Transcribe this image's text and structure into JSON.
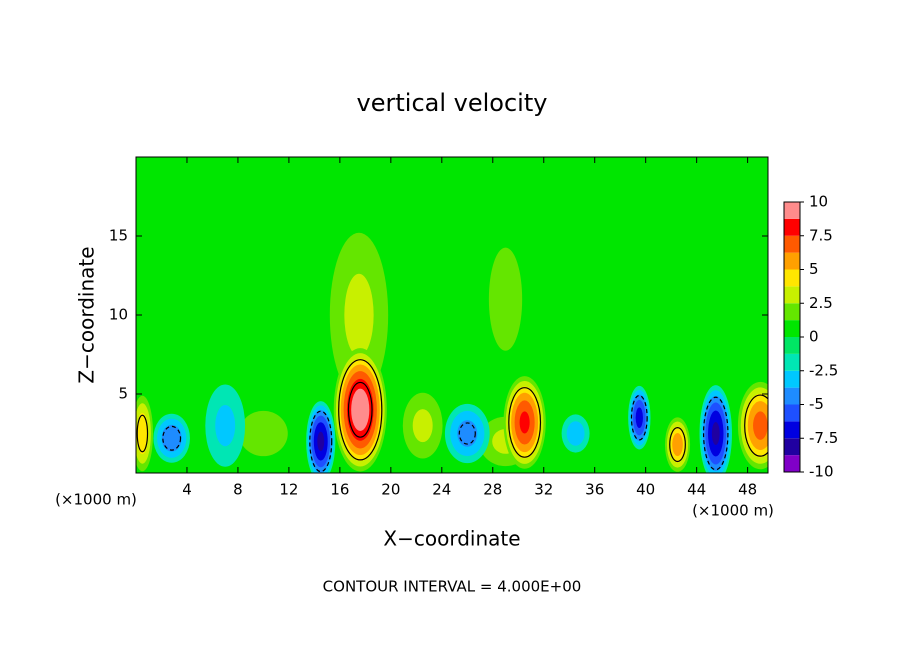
{
  "chart_data": {
    "type": "contour",
    "title": "vertical velocity",
    "x_label": "X−coordinate",
    "y_label": "Z−coordinate",
    "x_unit": "(×1000 m)",
    "annotation": "CONTOUR INTERVAL = 4.000E+00",
    "contour_interval": 4,
    "xlim": [
      0,
      49.6
    ],
    "ylim": [
      0,
      20
    ],
    "xticks": [
      4,
      8,
      12,
      16,
      20,
      24,
      28,
      32,
      36,
      40,
      44,
      48
    ],
    "yticks": [
      5,
      10,
      15
    ],
    "clim": [
      -10,
      10
    ],
    "cticks": [
      -10,
      -7.5,
      -5,
      -2.5,
      0,
      2.5,
      5,
      7.5,
      10
    ],
    "colors": [
      "#8000c8",
      "#2000a0",
      "#0000e0",
      "#1e50ff",
      "#1e8cff",
      "#00c8ff",
      "#00e6b4",
      "#00e664",
      "#00e600",
      "#64e600",
      "#c8f000",
      "#ffe600",
      "#ffa000",
      "#ff5a00",
      "#ff0000",
      "#ff8c8c"
    ],
    "features": [
      {
        "x": 17.5,
        "z": 10,
        "rx": 2.2,
        "rz": 5,
        "value": 3
      },
      {
        "x": 29,
        "z": 11,
        "rx": 1.6,
        "rz": 4,
        "value": 2
      },
      {
        "x": 10,
        "z": 2.5,
        "rx": 2,
        "rz": 1.5,
        "value": 2.5
      },
      {
        "x": 22.5,
        "z": 3,
        "rx": 1.5,
        "rz": 2,
        "value": 3
      },
      {
        "x": 29,
        "z": 2,
        "rx": 2,
        "rz": 1.5,
        "value": 3
      },
      {
        "x": 7,
        "z": 3,
        "rx": 1.5,
        "rz": 2.5,
        "value": -3
      },
      {
        "x": 17.6,
        "z": 4,
        "rx": 1.6,
        "rz": 3,
        "value": 10
      },
      {
        "x": 30.5,
        "z": 3.2,
        "rx": 1.3,
        "rz": 2.3,
        "value": 8
      },
      {
        "x": 49,
        "z": 3,
        "rx": 1.4,
        "rz": 2.2,
        "value": 7
      },
      {
        "x": 42.5,
        "z": 1.8,
        "rx": 0.8,
        "rz": 1.4,
        "value": 6
      },
      {
        "x": 0.5,
        "z": 2.5,
        "rx": 0.7,
        "rz": 2,
        "value": 5
      },
      {
        "x": 14.5,
        "z": 2,
        "rx": 0.9,
        "rz": 2,
        "value": -8
      },
      {
        "x": 45.5,
        "z": 2.5,
        "rx": 1,
        "rz": 2.4,
        "value": -8
      },
      {
        "x": 39.5,
        "z": 3.5,
        "rx": 0.7,
        "rz": 1.6,
        "value": -7
      },
      {
        "x": 26,
        "z": 2.5,
        "rx": 1.5,
        "rz": 1.6,
        "value": -4.5
      },
      {
        "x": 2.8,
        "z": 2.2,
        "rx": 1.2,
        "rz": 1.3,
        "value": -5
      },
      {
        "x": 34.5,
        "z": 2.5,
        "rx": 1,
        "rz": 1.1,
        "value": -3.5
      }
    ]
  }
}
